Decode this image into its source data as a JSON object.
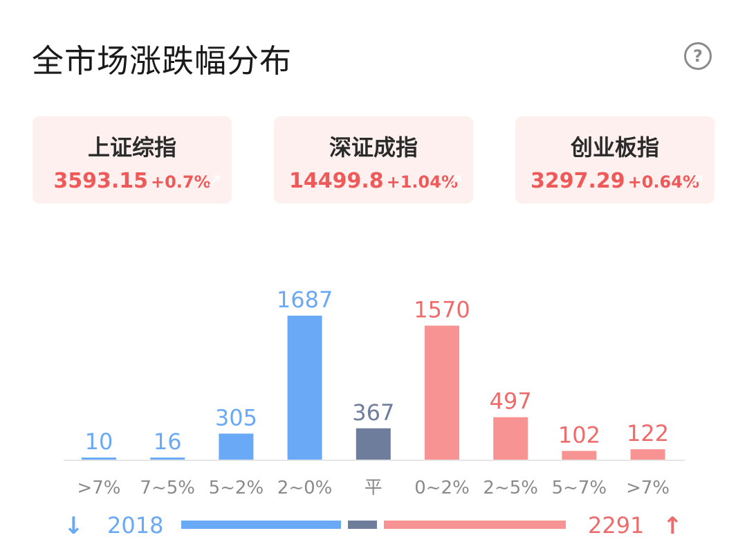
{
  "header": {
    "title": "全市场涨跌幅分布",
    "help_icon": "question-circle-icon",
    "help_glyph": "?"
  },
  "indices": [
    {
      "name": "上证综指",
      "value": "3593.15",
      "change": "+0.7%"
    },
    {
      "name": "深证成指",
      "value": "14499.8",
      "change": "+1.04%"
    },
    {
      "name": "创业板指",
      "value": "3297.29",
      "change": "+0.64%"
    }
  ],
  "colors": {
    "down": "#6aa9f6",
    "flat": "#6e7d9b",
    "up": "#f79393",
    "up_text": "#ee6b6b",
    "axis": "#e6e6e6",
    "label": "#8a8a8a"
  },
  "chart_data": {
    "type": "bar",
    "title": "全市场涨跌幅分布",
    "categories": [
      ">7%",
      "7~5%",
      "5~2%",
      "2~0%",
      "平",
      "0~2%",
      "2~5%",
      "5~7%",
      ">7%"
    ],
    "values": [
      10,
      16,
      305,
      1687,
      367,
      1570,
      497,
      102,
      122
    ],
    "groups": [
      "down",
      "down",
      "down",
      "down",
      "flat",
      "up",
      "up",
      "up",
      "up"
    ],
    "ylim": [
      0,
      1687
    ],
    "grid": false,
    "show_data_labels": true
  },
  "summary": {
    "down_icon": "arrow-down-icon",
    "down_glyph": "↓",
    "down_count": "2018",
    "up_icon": "arrow-up-icon",
    "up_glyph": "↑",
    "up_count": "2291",
    "bar_ratio": [
      2018,
      367,
      2291
    ]
  }
}
